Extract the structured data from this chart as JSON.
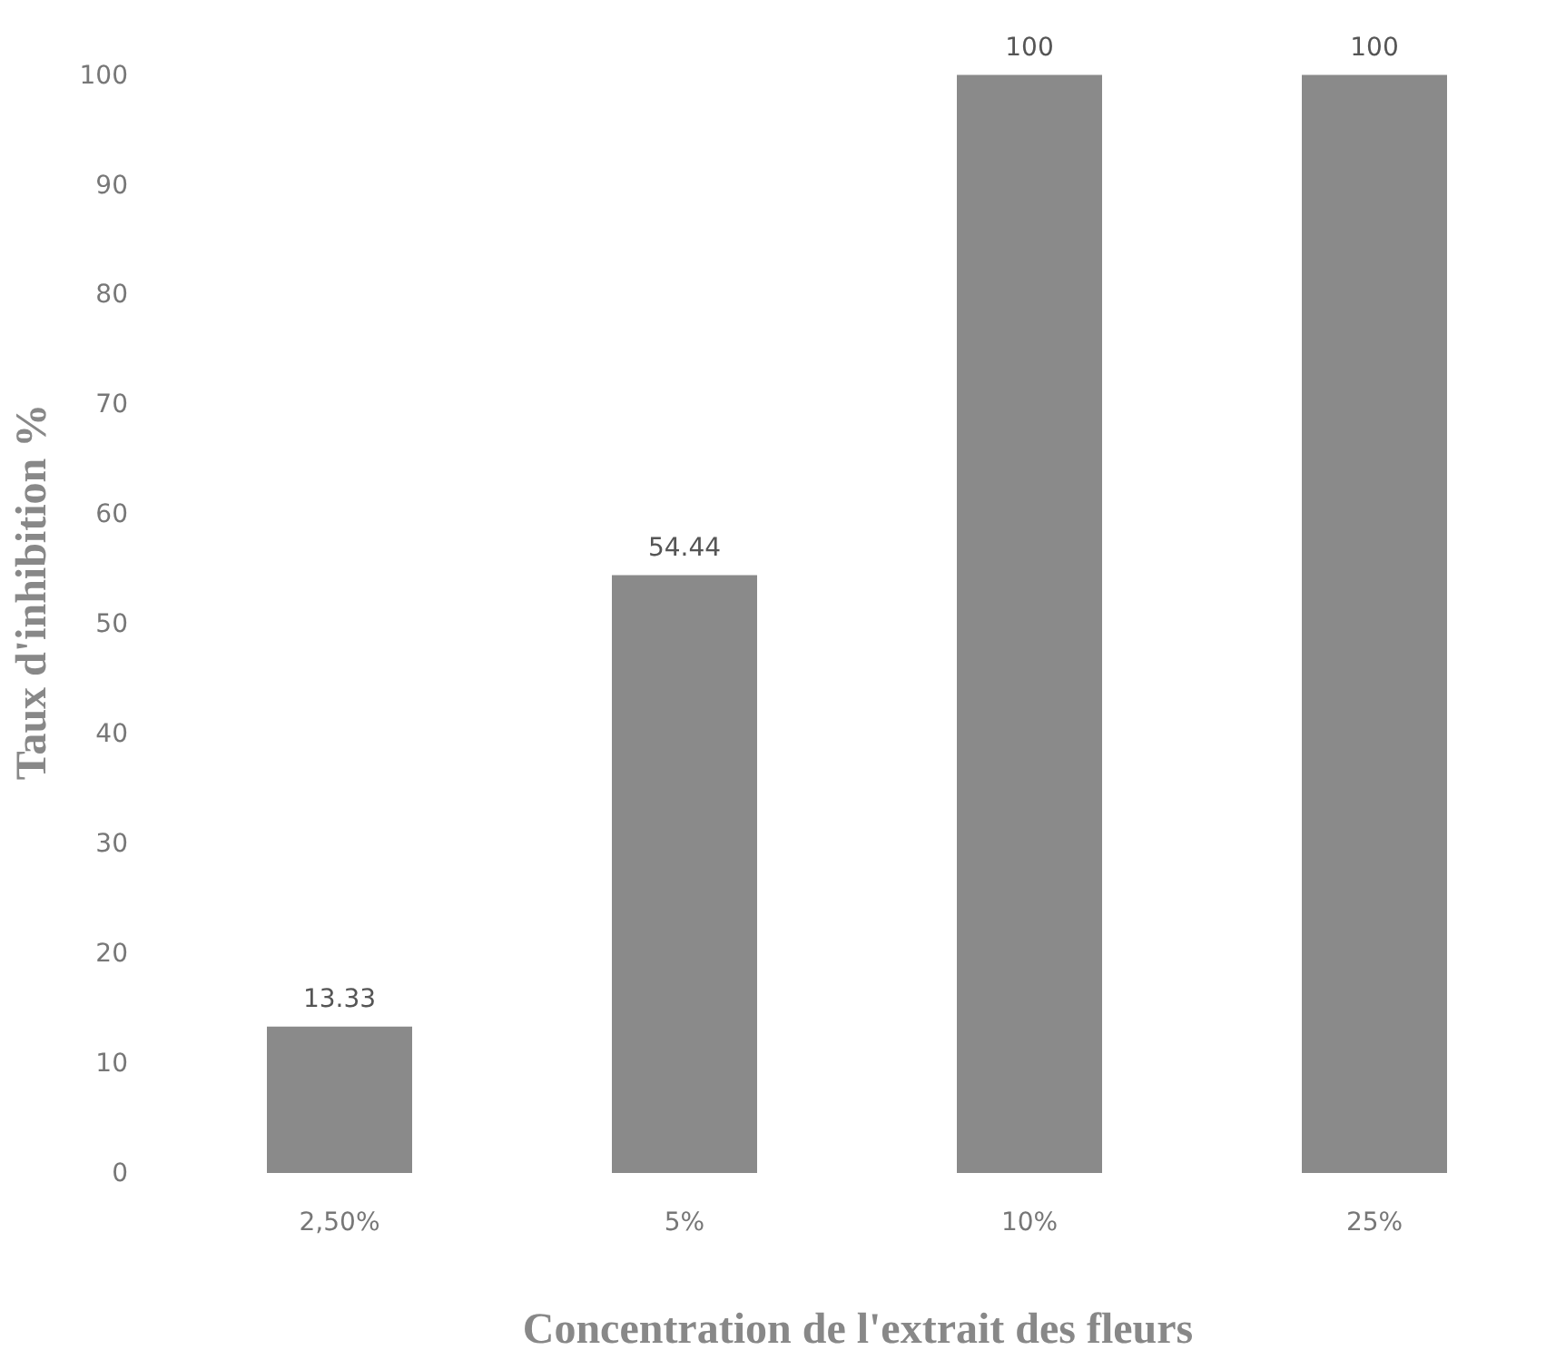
{
  "chart_data": {
    "type": "bar",
    "xlabel": "Concentration de l'extrait  des fleurs",
    "ylabel": "Taux d'inhibition %",
    "categories": [
      "2,50%",
      "5%",
      "10%",
      "25%"
    ],
    "values": [
      13.33,
      54.44,
      100,
      100
    ],
    "color": "#8a8a8a",
    "ylim": [
      0,
      106
    ],
    "yticks": [
      0,
      10,
      20,
      30,
      40,
      50,
      60,
      70,
      80,
      90,
      100
    ],
    "data_labels": true,
    "grid": false
  }
}
